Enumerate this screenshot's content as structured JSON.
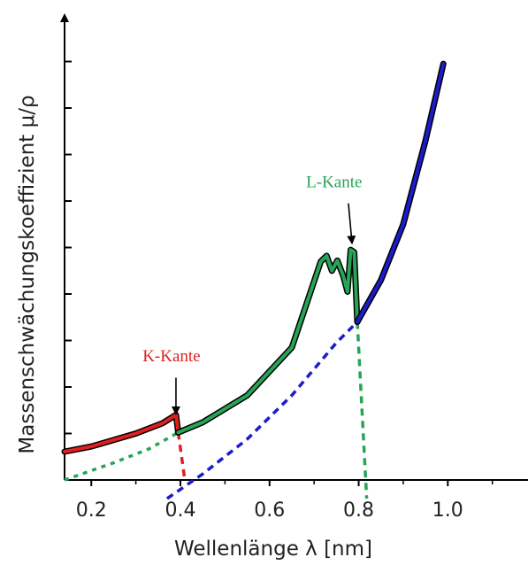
{
  "chart_data": {
    "type": "line",
    "title": "",
    "xlabel": "Wellenlänge λ [nm]",
    "ylabel": "Massenschwächungskoeffizient μ/ρ",
    "x_ticks": [
      "0.2",
      "0.4",
      "0.6",
      "0.8",
      "1.0"
    ],
    "x_tick_values": [
      0.2,
      0.4,
      0.6,
      0.8,
      1.0
    ],
    "xlim": [
      0.14,
      1.18
    ],
    "ylim": [
      0,
      10
    ],
    "y_tick_values": [
      1,
      2,
      3,
      4,
      5,
      6,
      7,
      8,
      9
    ],
    "y_tick_labels_shown": false,
    "grid": false,
    "series": [
      {
        "role": "below-K",
        "color": "#e02020",
        "style": "solid",
        "points": [
          [
            0.14,
            0.61
          ],
          [
            0.2,
            0.72
          ],
          [
            0.3,
            1.0
          ],
          [
            0.36,
            1.22
          ],
          [
            0.39,
            1.4
          ],
          [
            0.395,
            1.02
          ]
        ]
      },
      {
        "role": "K-to-L",
        "color": "#27a455",
        "style": "solid",
        "points": [
          [
            0.395,
            1.02
          ],
          [
            0.45,
            1.24
          ],
          [
            0.55,
            1.82
          ],
          [
            0.65,
            2.85
          ],
          [
            0.715,
            4.7
          ],
          [
            0.728,
            4.82
          ],
          [
            0.74,
            4.5
          ],
          [
            0.752,
            4.72
          ],
          [
            0.765,
            4.4
          ],
          [
            0.775,
            4.05
          ],
          [
            0.782,
            4.95
          ],
          [
            0.79,
            4.9
          ],
          [
            0.797,
            3.4
          ]
        ]
      },
      {
        "role": "above-L",
        "color": "#1c1ccc",
        "style": "solid",
        "points": [
          [
            0.797,
            3.4
          ],
          [
            0.85,
            4.3
          ],
          [
            0.9,
            5.5
          ],
          [
            0.95,
            7.3
          ],
          [
            0.99,
            8.95
          ]
        ]
      },
      {
        "role": "K-edge-drop",
        "color": "#e02020",
        "style": "dashed",
        "points": [
          [
            0.395,
            1.02
          ],
          [
            0.41,
            0.0
          ]
        ]
      },
      {
        "role": "green-extrapolation",
        "color": "#27a455",
        "style": "dotted",
        "points": [
          [
            0.14,
            0.0
          ],
          [
            0.25,
            0.37
          ],
          [
            0.33,
            0.67
          ],
          [
            0.395,
            1.02
          ]
        ]
      },
      {
        "role": "L-edge-drop",
        "color": "#27a455",
        "style": "dashed",
        "points": [
          [
            0.797,
            3.4
          ],
          [
            0.818,
            -0.4
          ]
        ]
      },
      {
        "role": "blue-extrapolation",
        "color": "#1c1ccc",
        "style": "dashed",
        "points": [
          [
            0.37,
            -0.4
          ],
          [
            0.45,
            0.13
          ],
          [
            0.55,
            0.88
          ],
          [
            0.65,
            1.82
          ],
          [
            0.75,
            2.95
          ],
          [
            0.797,
            3.4
          ]
        ]
      }
    ],
    "annotations": [
      {
        "id": "k",
        "text": "K-Kante",
        "color": "#e02020",
        "x": 0.38,
        "y": 2.55,
        "arrow_tip": [
          0.39,
          1.43
        ],
        "arrow_tail": [
          0.39,
          2.2
        ]
      },
      {
        "id": "l",
        "text": "L-Kante",
        "color": "#27a455",
        "x": 0.745,
        "y": 6.3,
        "arrow_tip": [
          0.785,
          5.1
        ],
        "arrow_tail": [
          0.777,
          5.95
        ]
      }
    ]
  }
}
